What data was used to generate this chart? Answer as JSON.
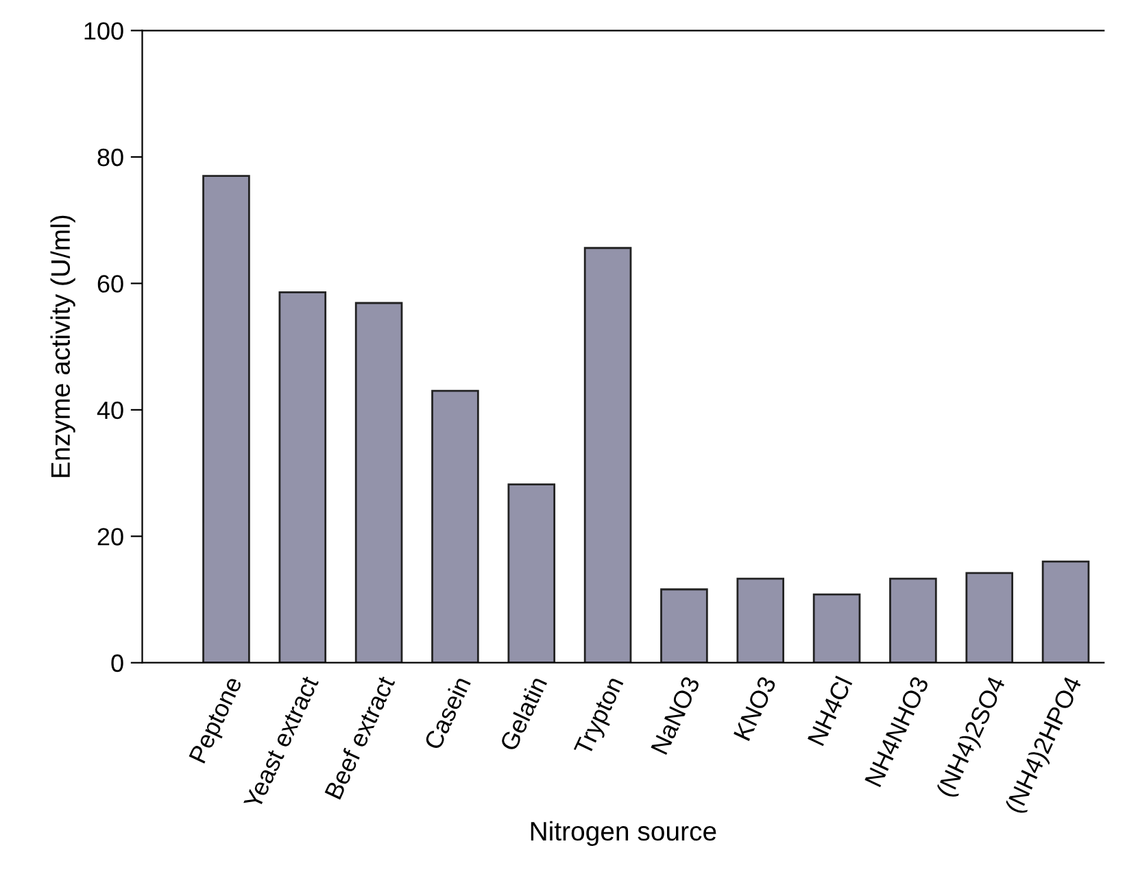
{
  "chart_data": {
    "type": "bar",
    "xlabel": "Nitrogen source",
    "ylabel": "Enzyme activity (U/ml)",
    "categories": [
      "Peptone",
      "Yeast extract",
      "Beef extract",
      "Casein",
      "Gelatin",
      "Trypton",
      "NaNO3",
      "KNO3",
      "NH4Cl",
      "NH4NHO3",
      "(NH4)2SO4",
      "(NH4)2HPO4"
    ],
    "values": [
      77,
      58.6,
      56.9,
      43,
      28.2,
      65.6,
      11.6,
      13.3,
      10.8,
      13.3,
      14.2,
      16
    ],
    "color": "#9393aa",
    "ylim": [
      0,
      100
    ],
    "yticks": [
      0,
      20,
      40,
      60,
      80,
      100
    ],
    "grid": false
  }
}
